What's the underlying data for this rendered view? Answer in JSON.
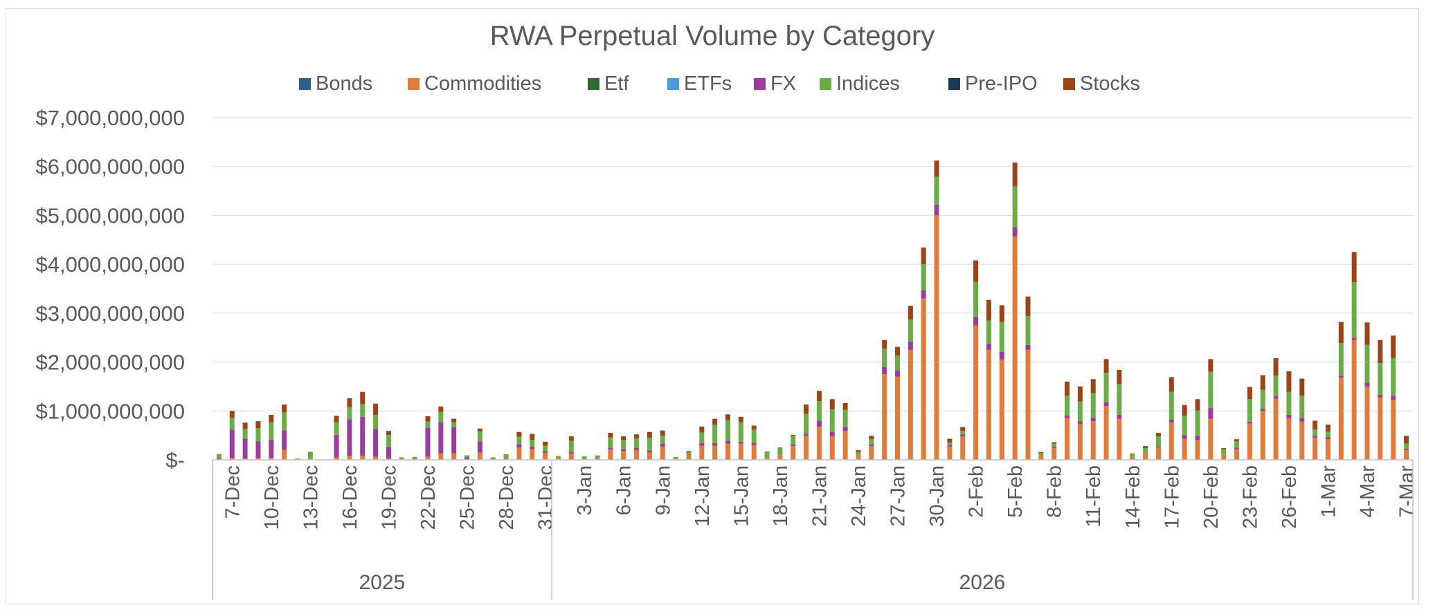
{
  "chart_data": {
    "type": "bar",
    "stacked": true,
    "title": "RWA Perpetual Volume by Category",
    "legend_position": "top",
    "gridlines": true,
    "ylim": [
      0,
      7000000000
    ],
    "y_ticks": [
      {
        "value": 0,
        "label": "$-"
      },
      {
        "value": 1000000000,
        "label": "$1,000,000,000"
      },
      {
        "value": 2000000000,
        "label": "$2,000,000,000"
      },
      {
        "value": 3000000000,
        "label": "$3,000,000,000"
      },
      {
        "value": 4000000000,
        "label": "$4,000,000,000"
      },
      {
        "value": 5000000000,
        "label": "$5,000,000,000"
      },
      {
        "value": 6000000000,
        "label": "$6,000,000,000"
      },
      {
        "value": 7000000000,
        "label": "$7,000,000,000"
      }
    ],
    "x_start_date": "2025-12-06",
    "x_end_date": "2026-03-07",
    "x_tick_labels": [
      {
        "date": "2025-12-07",
        "label": "7-Dec"
      },
      {
        "date": "2025-12-10",
        "label": "10-Dec"
      },
      {
        "date": "2025-12-13",
        "label": "13-Dec"
      },
      {
        "date": "2025-12-16",
        "label": "16-Dec"
      },
      {
        "date": "2025-12-19",
        "label": "19-Dec"
      },
      {
        "date": "2025-12-22",
        "label": "22-Dec"
      },
      {
        "date": "2025-12-25",
        "label": "25-Dec"
      },
      {
        "date": "2025-12-28",
        "label": "28-Dec"
      },
      {
        "date": "2025-12-31",
        "label": "31-Dec"
      },
      {
        "date": "2026-01-03",
        "label": "3-Jan"
      },
      {
        "date": "2026-01-06",
        "label": "6-Jan"
      },
      {
        "date": "2026-01-09",
        "label": "9-Jan"
      },
      {
        "date": "2026-01-12",
        "label": "12-Jan"
      },
      {
        "date": "2026-01-15",
        "label": "15-Jan"
      },
      {
        "date": "2026-01-18",
        "label": "18-Jan"
      },
      {
        "date": "2026-01-21",
        "label": "21-Jan"
      },
      {
        "date": "2026-01-24",
        "label": "24-Jan"
      },
      {
        "date": "2026-01-27",
        "label": "27-Jan"
      },
      {
        "date": "2026-01-30",
        "label": "30-Jan"
      },
      {
        "date": "2026-02-02",
        "label": "2-Feb"
      },
      {
        "date": "2026-02-05",
        "label": "5-Feb"
      },
      {
        "date": "2026-02-08",
        "label": "8-Feb"
      },
      {
        "date": "2026-02-11",
        "label": "11-Feb"
      },
      {
        "date": "2026-02-14",
        "label": "14-Feb"
      },
      {
        "date": "2026-02-17",
        "label": "17-Feb"
      },
      {
        "date": "2026-02-20",
        "label": "20-Feb"
      },
      {
        "date": "2026-02-23",
        "label": "23-Feb"
      },
      {
        "date": "2026-02-26",
        "label": "26-Feb"
      },
      {
        "date": "2026-03-01",
        "label": "1-Mar"
      },
      {
        "date": "2026-03-04",
        "label": "4-Mar"
      },
      {
        "date": "2026-03-07",
        "label": "7-Mar"
      }
    ],
    "year_groups": [
      {
        "label": "2025",
        "from": "2025-12-06",
        "to": "2025-12-31"
      },
      {
        "label": "2026",
        "from": "2026-01-01",
        "to": "2026-03-07"
      }
    ],
    "series": [
      {
        "name": "Bonds",
        "color": "#2e5f8a"
      },
      {
        "name": "Commodities",
        "color": "#e07b39"
      },
      {
        "name": "Etf",
        "color": "#2f6b2a"
      },
      {
        "name": "ETFs",
        "color": "#4b9cd3"
      },
      {
        "name": "FX",
        "color": "#9b3d9c"
      },
      {
        "name": "Indices",
        "color": "#6aad45"
      },
      {
        "name": "Pre-IPO",
        "color": "#1b3a55"
      },
      {
        "name": "Stocks",
        "color": "#9a4418"
      }
    ],
    "stack_order": [
      "Bonds",
      "Commodities",
      "Etf",
      "ETFs",
      "FX",
      "Indices",
      "Pre-IPO",
      "Stocks"
    ],
    "bars": [
      {
        "date": "2025-12-06",
        "Commodities": 20000000,
        "FX": 20000000,
        "Indices": 70000000,
        "Stocks": 10000000
      },
      {
        "date": "2025-12-07",
        "Commodities": 40000000,
        "FX": 580000000,
        "Indices": 240000000,
        "Stocks": 140000000
      },
      {
        "date": "2025-12-08",
        "Commodities": 30000000,
        "FX": 400000000,
        "Indices": 200000000,
        "Stocks": 130000000
      },
      {
        "date": "2025-12-09",
        "Commodities": 40000000,
        "FX": 340000000,
        "Indices": 270000000,
        "Stocks": 140000000
      },
      {
        "date": "2025-12-10",
        "Commodities": 40000000,
        "FX": 370000000,
        "Indices": 360000000,
        "Stocks": 150000000
      },
      {
        "date": "2025-12-11",
        "Commodities": 200000000,
        "FX": 400000000,
        "Indices": 370000000,
        "Stocks": 160000000
      },
      {
        "date": "2025-12-12",
        "Commodities": 5000000,
        "Indices": 20000000
      },
      {
        "date": "2025-12-13",
        "Commodities": 10000000,
        "Indices": 140000000,
        "Stocks": 10000000
      },
      {
        "date": "2025-12-15",
        "Commodities": 50000000,
        "FX": 460000000,
        "Indices": 260000000,
        "Stocks": 130000000
      },
      {
        "date": "2025-12-16",
        "Commodities": 80000000,
        "FX": 750000000,
        "Indices": 250000000,
        "Stocks": 180000000
      },
      {
        "date": "2025-12-17",
        "Commodities": 80000000,
        "FX": 800000000,
        "Indices": 260000000,
        "Stocks": 250000000
      },
      {
        "date": "2025-12-18",
        "Commodities": 60000000,
        "FX": 570000000,
        "Indices": 290000000,
        "Stocks": 230000000
      },
      {
        "date": "2025-12-19",
        "Commodities": 30000000,
        "FX": 240000000,
        "Indices": 240000000,
        "Stocks": 80000000
      },
      {
        "date": "2025-12-20",
        "Commodities": 10000000,
        "Indices": 40000000
      },
      {
        "date": "2025-12-21",
        "Commodities": 10000000,
        "Indices": 50000000
      },
      {
        "date": "2025-12-22",
        "Commodities": 60000000,
        "FX": 600000000,
        "Indices": 120000000,
        "Stocks": 110000000
      },
      {
        "date": "2025-12-23",
        "Commodities": 130000000,
        "FX": 640000000,
        "Indices": 210000000,
        "Stocks": 110000000
      },
      {
        "date": "2025-12-24",
        "Commodities": 130000000,
        "FX": 540000000,
        "Indices": 100000000,
        "Stocks": 70000000
      },
      {
        "date": "2025-12-25",
        "Commodities": 10000000,
        "FX": 40000000,
        "Indices": 30000000,
        "Stocks": 10000000
      },
      {
        "date": "2025-12-26",
        "Commodities": 150000000,
        "FX": 230000000,
        "Indices": 200000000,
        "Stocks": 60000000
      },
      {
        "date": "2025-12-27",
        "Commodities": 10000000,
        "Indices": 40000000
      },
      {
        "date": "2025-12-28",
        "Commodities": 50000000,
        "Indices": 50000000,
        "Stocks": 10000000
      },
      {
        "date": "2025-12-29",
        "Commodities": 250000000,
        "FX": 70000000,
        "Indices": 150000000,
        "Stocks": 100000000
      },
      {
        "date": "2025-12-30",
        "Commodities": 220000000,
        "FX": 50000000,
        "Indices": 140000000,
        "Stocks": 120000000
      },
      {
        "date": "2025-12-31",
        "Commodities": 140000000,
        "FX": 30000000,
        "Indices": 120000000,
        "Stocks": 80000000
      },
      {
        "date": "2026-01-01",
        "Commodities": 40000000,
        "Indices": 40000000
      },
      {
        "date": "2026-01-02",
        "Commodities": 130000000,
        "FX": 30000000,
        "Indices": 230000000,
        "Stocks": 90000000
      },
      {
        "date": "2026-01-03",
        "Commodities": 20000000,
        "Indices": 50000000
      },
      {
        "date": "2026-01-04",
        "Commodities": 30000000,
        "Indices": 60000000
      },
      {
        "date": "2026-01-05",
        "Commodities": 210000000,
        "FX": 40000000,
        "Indices": 210000000,
        "Stocks": 90000000
      },
      {
        "date": "2026-01-06",
        "Commodities": 180000000,
        "FX": 40000000,
        "Indices": 180000000,
        "Stocks": 80000000
      },
      {
        "date": "2026-01-07",
        "Commodities": 200000000,
        "FX": 40000000,
        "Indices": 200000000,
        "Stocks": 80000000
      },
      {
        "date": "2026-01-08",
        "Commodities": 150000000,
        "FX": 40000000,
        "Indices": 260000000,
        "Stocks": 120000000
      },
      {
        "date": "2026-01-09",
        "Commodities": 270000000,
        "FX": 60000000,
        "Indices": 160000000,
        "Stocks": 110000000
      },
      {
        "date": "2026-01-10",
        "Commodities": 20000000,
        "Indices": 40000000
      },
      {
        "date": "2026-01-11",
        "Commodities": 100000000,
        "FX": 10000000,
        "Indices": 50000000,
        "Stocks": 20000000
      },
      {
        "date": "2026-01-12",
        "Commodities": 290000000,
        "FX": 50000000,
        "Indices": 220000000,
        "Stocks": 120000000
      },
      {
        "date": "2026-01-13",
        "Commodities": 280000000,
        "FX": 60000000,
        "Indices": 380000000,
        "Stocks": 120000000
      },
      {
        "date": "2026-01-14",
        "Commodities": 330000000,
        "FX": 60000000,
        "Indices": 420000000,
        "Stocks": 120000000
      },
      {
        "date": "2026-01-15",
        "Commodities": 330000000,
        "FX": 40000000,
        "Indices": 400000000,
        "Stocks": 110000000
      },
      {
        "date": "2026-01-16",
        "Commodities": 300000000,
        "FX": 40000000,
        "Indices": 280000000,
        "Stocks": 80000000
      },
      {
        "date": "2026-01-17",
        "Commodities": 30000000,
        "Indices": 130000000,
        "Stocks": 10000000
      },
      {
        "date": "2026-01-18",
        "Commodities": 90000000,
        "Indices": 150000000,
        "Stocks": 10000000
      },
      {
        "date": "2026-01-19",
        "Commodities": 280000000,
        "FX": 30000000,
        "Indices": 180000000,
        "Stocks": 20000000
      },
      {
        "date": "2026-01-20",
        "Commodities": 490000000,
        "FX": 50000000,
        "Indices": 400000000,
        "Stocks": 190000000
      },
      {
        "date": "2026-01-21",
        "Commodities": 680000000,
        "FX": 120000000,
        "Indices": 400000000,
        "Stocks": 210000000
      },
      {
        "date": "2026-01-22",
        "Commodities": 480000000,
        "FX": 90000000,
        "Indices": 460000000,
        "Stocks": 210000000
      },
      {
        "date": "2026-01-23",
        "Commodities": 590000000,
        "FX": 80000000,
        "Indices": 350000000,
        "Stocks": 140000000
      },
      {
        "date": "2026-01-24",
        "Commodities": 80000000,
        "Indices": 80000000,
        "Stocks": 40000000
      },
      {
        "date": "2026-01-25",
        "Commodities": 280000000,
        "FX": 30000000,
        "Indices": 110000000,
        "Stocks": 70000000
      },
      {
        "date": "2026-01-26",
        "Commodities": 1750000000,
        "FX": 150000000,
        "Indices": 370000000,
        "Stocks": 180000000
      },
      {
        "date": "2026-01-27",
        "Commodities": 1700000000,
        "FX": 130000000,
        "Indices": 300000000,
        "Stocks": 180000000
      },
      {
        "date": "2026-01-28",
        "Commodities": 2250000000,
        "FX": 170000000,
        "Indices": 450000000,
        "Stocks": 280000000
      },
      {
        "date": "2026-01-29",
        "Commodities": 3300000000,
        "FX": 170000000,
        "Indices": 530000000,
        "Stocks": 340000000
      },
      {
        "date": "2026-01-30",
        "Commodities": 5000000000,
        "FX": 220000000,
        "Indices": 570000000,
        "Stocks": 330000000
      },
      {
        "date": "2026-01-31",
        "Commodities": 270000000,
        "FX": 30000000,
        "Indices": 50000000,
        "Stocks": 80000000
      },
      {
        "date": "2026-02-01",
        "Commodities": 480000000,
        "FX": 40000000,
        "Indices": 70000000,
        "Stocks": 80000000
      },
      {
        "date": "2026-02-02",
        "Commodities": 2750000000,
        "FX": 170000000,
        "Indices": 720000000,
        "Stocks": 440000000
      },
      {
        "date": "2026-02-03",
        "Commodities": 2250000000,
        "FX": 120000000,
        "Indices": 480000000,
        "Stocks": 420000000
      },
      {
        "date": "2026-02-04",
        "Commodities": 2050000000,
        "FX": 160000000,
        "Indices": 610000000,
        "Stocks": 340000000
      },
      {
        "date": "2026-02-05",
        "Commodities": 4570000000,
        "FX": 190000000,
        "Indices": 830000000,
        "Stocks": 490000000
      },
      {
        "date": "2026-02-06",
        "Commodities": 2250000000,
        "FX": 100000000,
        "Indices": 590000000,
        "Stocks": 400000000
      },
      {
        "date": "2026-02-07",
        "Commodities": 80000000,
        "Indices": 60000000,
        "Stocks": 20000000
      },
      {
        "date": "2026-02-08",
        "Commodities": 240000000,
        "FX": 20000000,
        "Indices": 70000000,
        "Stocks": 30000000
      },
      {
        "date": "2026-02-09",
        "Commodities": 850000000,
        "FX": 60000000,
        "Indices": 400000000,
        "Stocks": 290000000
      },
      {
        "date": "2026-02-10",
        "Commodities": 730000000,
        "FX": 60000000,
        "Indices": 400000000,
        "Stocks": 310000000
      },
      {
        "date": "2026-02-11",
        "Commodities": 790000000,
        "FX": 70000000,
        "Indices": 500000000,
        "Stocks": 290000000
      },
      {
        "date": "2026-02-12",
        "Commodities": 1100000000,
        "FX": 80000000,
        "Indices": 600000000,
        "Stocks": 280000000
      },
      {
        "date": "2026-02-13",
        "Commodities": 840000000,
        "FX": 80000000,
        "Indices": 630000000,
        "Stocks": 290000000
      },
      {
        "date": "2026-02-14",
        "Commodities": 60000000,
        "Indices": 60000000,
        "Stocks": 10000000
      },
      {
        "date": "2026-02-15",
        "Commodities": 140000000,
        "Indices": 100000000,
        "Stocks": 40000000
      },
      {
        "date": "2026-02-16",
        "Commodities": 260000000,
        "FX": 20000000,
        "Indices": 200000000,
        "Stocks": 70000000
      },
      {
        "date": "2026-02-17",
        "Commodities": 760000000,
        "FX": 60000000,
        "Indices": 570000000,
        "Stocks": 300000000
      },
      {
        "date": "2026-02-18",
        "Commodities": 430000000,
        "FX": 80000000,
        "Indices": 390000000,
        "Stocks": 220000000
      },
      {
        "date": "2026-02-19",
        "Commodities": 400000000,
        "FX": 90000000,
        "Indices": 520000000,
        "Stocks": 230000000
      },
      {
        "date": "2026-02-20",
        "Commodities": 840000000,
        "FX": 220000000,
        "Indices": 740000000,
        "Stocks": 260000000
      },
      {
        "date": "2026-02-21",
        "Commodities": 110000000,
        "Indices": 110000000,
        "Stocks": 20000000
      },
      {
        "date": "2026-02-22",
        "Commodities": 220000000,
        "FX": 20000000,
        "Indices": 140000000,
        "Stocks": 40000000
      },
      {
        "date": "2026-02-23",
        "Commodities": 740000000,
        "FX": 40000000,
        "Indices": 460000000,
        "Stocks": 250000000
      },
      {
        "date": "2026-02-24",
        "Commodities": 1000000000,
        "FX": 40000000,
        "Indices": 390000000,
        "Stocks": 300000000
      },
      {
        "date": "2026-02-25",
        "Commodities": 1250000000,
        "FX": 50000000,
        "Indices": 420000000,
        "Stocks": 360000000
      },
      {
        "date": "2026-02-26",
        "Commodities": 850000000,
        "FX": 70000000,
        "Indices": 470000000,
        "Stocks": 420000000
      },
      {
        "date": "2026-02-27",
        "Commodities": 780000000,
        "FX": 80000000,
        "Indices": 450000000,
        "Stocks": 350000000
      },
      {
        "date": "2026-02-28",
        "Commodities": 450000000,
        "FX": 40000000,
        "Indices": 130000000,
        "Stocks": 180000000
      },
      {
        "date": "2026-03-01",
        "Commodities": 420000000,
        "FX": 40000000,
        "Indices": 120000000,
        "Stocks": 140000000
      },
      {
        "date": "2026-03-02",
        "Commodities": 1680000000,
        "FX": 40000000,
        "Indices": 670000000,
        "Stocks": 430000000
      },
      {
        "date": "2026-03-03",
        "Commodities": 2450000000,
        "FX": 50000000,
        "Indices": 1130000000,
        "Stocks": 620000000
      },
      {
        "date": "2026-03-04",
        "Commodities": 1500000000,
        "FX": 80000000,
        "Indices": 770000000,
        "Stocks": 460000000
      },
      {
        "date": "2026-03-05",
        "Commodities": 1270000000,
        "FX": 60000000,
        "Indices": 650000000,
        "Stocks": 470000000
      },
      {
        "date": "2026-03-06",
        "Commodities": 1230000000,
        "FX": 80000000,
        "Indices": 770000000,
        "Stocks": 460000000
      },
      {
        "date": "2026-03-07",
        "Commodities": 200000000,
        "FX": 30000000,
        "Indices": 100000000,
        "Stocks": 160000000
      }
    ]
  }
}
